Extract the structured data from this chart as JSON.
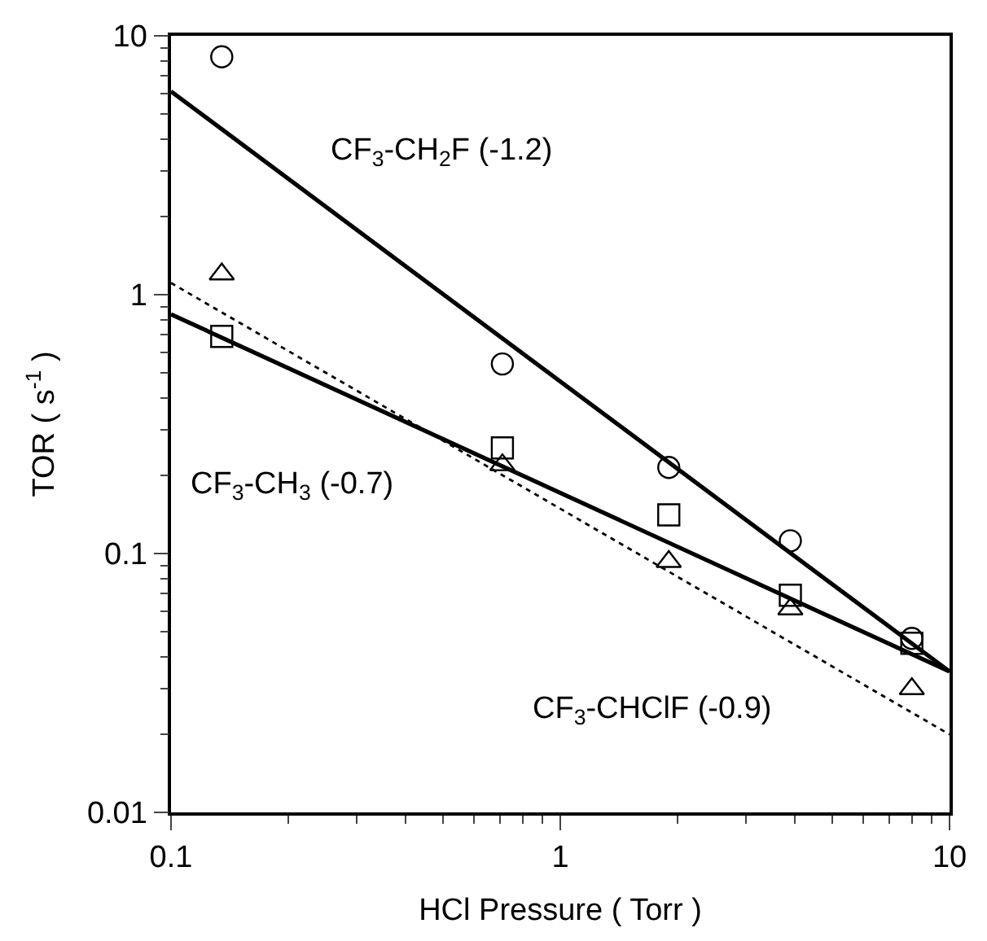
{
  "chart_data": {
    "type": "scatter",
    "xlabel": "HCl Pressure ( Torr )",
    "ylabel": "TOR ( s$^{-1}$ )",
    "log": "xy",
    "grid": false,
    "legend": false,
    "xlim": [
      0.1,
      10
    ],
    "xticks": [
      0.1,
      1,
      10
    ],
    "ylim": [
      0.01,
      10
    ],
    "yticks": [
      0.01,
      0.1,
      1,
      10
    ],
    "series": [
      {
        "marker": "circle",
        "color": "#000000",
        "x": [
          0.135,
          0.71,
          1.9,
          3.9,
          8.0
        ],
        "values": [
          8.3,
          0.54,
          0.215,
          0.112,
          0.047
        ]
      },
      {
        "marker": "triangle",
        "color": "#000000",
        "x": [
          0.135,
          0.71,
          1.9,
          3.9,
          8.0
        ],
        "values": [
          1.2,
          0.22,
          0.093,
          0.061,
          0.03
        ]
      },
      {
        "marker": "square",
        "color": "#000000",
        "x": [
          0.135,
          0.71,
          1.9,
          3.9,
          8.0
        ],
        "values": [
          0.69,
          0.256,
          0.141,
          0.069,
          0.045
        ]
      },
      {
        "type": "line",
        "name": "CF$_{3}$-CH$_{2}$F (-1.2)",
        "color": "#000000",
        "line_style": "solid",
        "marker": "none",
        "x": [
          0.1,
          10
        ],
        "values": [
          6.1,
          0.035
        ]
      },
      {
        "type": "line",
        "name": "CF$_{3}$-CH$_{3}$ (-0.7)",
        "color": "#000000",
        "line_style": "solid",
        "marker": "none",
        "x": [
          0.1,
          10
        ],
        "values": [
          0.84,
          0.035
        ]
      },
      {
        "type": "line",
        "name": "CF$_{3}$-CHClF (-0.9)",
        "color": "#000000",
        "line_style": "dotted",
        "marker": "none",
        "x": [
          0.1,
          10
        ],
        "values": [
          1.11,
          0.02
        ]
      }
    ]
  }
}
